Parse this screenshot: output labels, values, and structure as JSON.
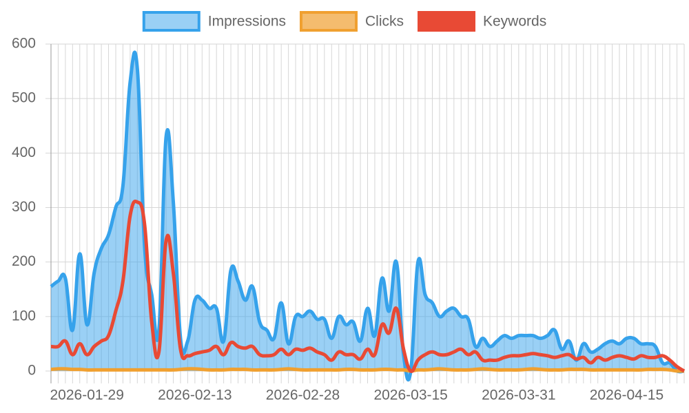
{
  "chart_data": {
    "type": "line",
    "categories": [
      null,
      null,
      null,
      null,
      null,
      "2026-01-29",
      null,
      null,
      null,
      null,
      null,
      null,
      null,
      null,
      null,
      null,
      null,
      null,
      null,
      null,
      "2026-02-13",
      null,
      null,
      null,
      null,
      null,
      null,
      null,
      null,
      null,
      null,
      null,
      null,
      null,
      null,
      "2026-02-28",
      null,
      null,
      null,
      null,
      null,
      null,
      null,
      null,
      null,
      null,
      null,
      null,
      null,
      null,
      "2026-03-15",
      null,
      null,
      null,
      null,
      null,
      null,
      null,
      null,
      null,
      null,
      null,
      null,
      null,
      null,
      "2026-03-31",
      null,
      null,
      null,
      null,
      null,
      null,
      null,
      null,
      null,
      null,
      null,
      null,
      null,
      null,
      "2026-04-15",
      null,
      null,
      null,
      null,
      null,
      null,
      null,
      null
    ],
    "series": [
      {
        "name": "Impressions",
        "color": "#36a2eb",
        "fill": true,
        "values": [
          155,
          165,
          170,
          75,
          215,
          85,
          180,
          225,
          250,
          300,
          340,
          530,
          555,
          230,
          140,
          75,
          430,
          310,
          60,
          55,
          130,
          130,
          115,
          115,
          55,
          185,
          165,
          130,
          155,
          90,
          75,
          60,
          125,
          50,
          100,
          100,
          110,
          95,
          95,
          60,
          100,
          85,
          90,
          55,
          115,
          65,
          170,
          110,
          200,
          30,
          0,
          200,
          140,
          125,
          100,
          110,
          115,
          100,
          95,
          45,
          60,
          45,
          55,
          65,
          60,
          65,
          65,
          65,
          60,
          65,
          75,
          40,
          55,
          20,
          50,
          35,
          40,
          50,
          55,
          50,
          60,
          60,
          50,
          50,
          45,
          15,
          15,
          0,
          0
        ]
      },
      {
        "name": "Clicks",
        "color": "#f0a030",
        "fill": false,
        "values": [
          3,
          4,
          4,
          3,
          3,
          2,
          2,
          2,
          2,
          2,
          2,
          2,
          2,
          2,
          2,
          2,
          2,
          2,
          3,
          4,
          4,
          3,
          2,
          2,
          2,
          3,
          3,
          3,
          2,
          2,
          2,
          2,
          3,
          4,
          3,
          2,
          2,
          2,
          2,
          2,
          2,
          3,
          3,
          2,
          2,
          2,
          3,
          3,
          2,
          2,
          0,
          2,
          2,
          3,
          4,
          3,
          2,
          2,
          2,
          3,
          4,
          3,
          2,
          2,
          2,
          2,
          3,
          4,
          3,
          2,
          2,
          2,
          3,
          3,
          3,
          2,
          2,
          2,
          2,
          2,
          2,
          2,
          2,
          3,
          3,
          3,
          2,
          0,
          0
        ]
      },
      {
        "name": "Keywords",
        "color": "#e84a35",
        "fill": false,
        "values": [
          45,
          45,
          55,
          30,
          50,
          30,
          45,
          55,
          65,
          110,
          165,
          285,
          310,
          270,
          90,
          35,
          240,
          180,
          40,
          28,
          32,
          35,
          38,
          45,
          30,
          52,
          45,
          42,
          45,
          30,
          28,
          30,
          40,
          30,
          40,
          38,
          42,
          35,
          30,
          20,
          35,
          30,
          30,
          22,
          40,
          30,
          85,
          70,
          115,
          40,
          0,
          20,
          30,
          35,
          30,
          30,
          35,
          40,
          30,
          35,
          20,
          20,
          20,
          25,
          28,
          28,
          30,
          32,
          30,
          28,
          25,
          28,
          30,
          22,
          25,
          15,
          25,
          20,
          25,
          28,
          25,
          22,
          28,
          25,
          25,
          28,
          20,
          8,
          0
        ]
      }
    ],
    "ylim": [
      0,
      600
    ],
    "yticks": [
      0,
      100,
      200,
      300,
      400,
      500,
      600
    ],
    "grid": true,
    "legend": "top"
  }
}
